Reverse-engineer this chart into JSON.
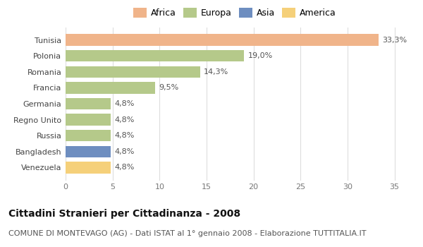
{
  "categories": [
    "Venezuela",
    "Bangladesh",
    "Russia",
    "Regno Unito",
    "Germania",
    "Francia",
    "Romania",
    "Polonia",
    "Tunisia"
  ],
  "values": [
    4.8,
    4.8,
    4.8,
    4.8,
    4.8,
    9.5,
    14.3,
    19.0,
    33.3
  ],
  "labels": [
    "4,8%",
    "4,8%",
    "4,8%",
    "4,8%",
    "4,8%",
    "9,5%",
    "14,3%",
    "19,0%",
    "33,3%"
  ],
  "colors": [
    "#f5d07a",
    "#6e8ec0",
    "#b5c98a",
    "#b5c98a",
    "#b5c98a",
    "#b5c98a",
    "#b5c98a",
    "#b5c98a",
    "#f0b48a"
  ],
  "legend": [
    {
      "label": "Africa",
      "color": "#f0b48a"
    },
    {
      "label": "Europa",
      "color": "#b5c98a"
    },
    {
      "label": "Asia",
      "color": "#6e8ec0"
    },
    {
      "label": "America",
      "color": "#f5d07a"
    }
  ],
  "xlim": [
    0,
    36
  ],
  "xticks": [
    0,
    5,
    10,
    15,
    20,
    25,
    30,
    35
  ],
  "title": "Cittadini Stranieri per Cittadinanza - 2008",
  "subtitle": "COMUNE DI MONTEVAGO (AG) - Dati ISTAT al 1° gennaio 2008 - Elaborazione TUTTITALIA.IT",
  "title_fontsize": 10,
  "subtitle_fontsize": 8,
  "bar_height": 0.72,
  "label_fontsize": 8,
  "tick_fontsize": 8,
  "background_color": "#ffffff",
  "grid_color": "#dddddd"
}
